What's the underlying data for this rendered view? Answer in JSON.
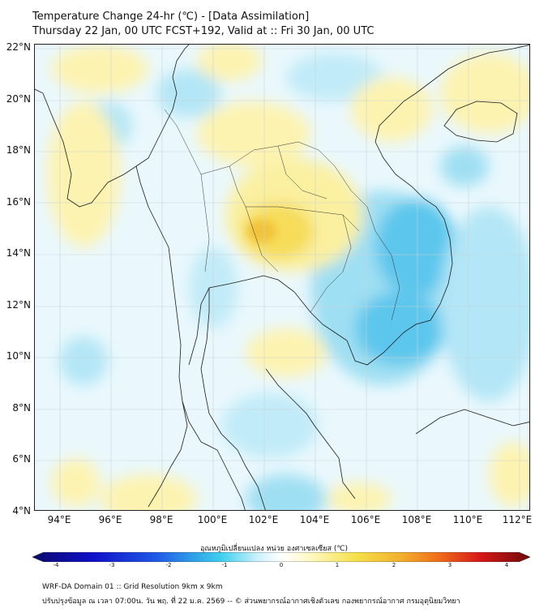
{
  "title": {
    "line1": "Temperature Change 24-hr (℃) - [Data Assimilation]",
    "line2": "Thursday 22 Jan, 00 UTC FCST+192, Valid at :: Fri 30 Jan, 00 UTC"
  },
  "map": {
    "lat_labels": [
      "22°N",
      "20°N",
      "18°N",
      "16°N",
      "14°N",
      "12°N",
      "10°N",
      "8°N",
      "6°N",
      "4°N"
    ],
    "lon_labels": [
      "94°E",
      "96°E",
      "98°E",
      "100°E",
      "102°E",
      "104°E",
      "106°E",
      "108°E",
      "110°E",
      "112°E"
    ],
    "lat_range": [
      4,
      22.2
    ],
    "lon_range": [
      93,
      112.4
    ],
    "field_summary": {
      "warm_areas": [
        "northeast Thailand (Isan) up to ~+1.5",
        "Gulf of Thailand",
        "western Myanmar coast",
        "northern Vietnam / Hainan",
        "Strait of Malacca"
      ],
      "cool_areas": [
        "Cambodia / southern Vietnam down to ~-1.2",
        "South China Sea",
        "Andaman Sea patches",
        "northern Myanmar"
      ]
    }
  },
  "colorbar": {
    "title": "อุณหภูมิเปลี่ยนแปลง หน่วย องศาเซลเซียส (℃)",
    "ticks": [
      "-4",
      "-3",
      "-2",
      "-1",
      "0",
      "1",
      "2",
      "3",
      "4"
    ],
    "min": -4,
    "max": 4,
    "colors": [
      "#0a0a6e",
      "#1010c8",
      "#1e5ae6",
      "#2f9de8",
      "#3fd0ef",
      "#c8f0fb",
      "#ffffff",
      "#fff8c0",
      "#f5e04a",
      "#f2b02e",
      "#ef6a1a",
      "#d61818",
      "#6e0a0a"
    ]
  },
  "footer": {
    "line1": "WRF-DA Domain 01 :: Grid Resolution 9km x 9km",
    "line2": "ปรับปรุงข้อมูล ณ เวลา 07:00น. วัน พฤ. ที่ 22 ม.ค. 2569 -- © ส่วนพยากรณ์อากาศเชิงตัวเลข กองพยากรณ์อากาศ กรมอุตุนิยมวิทยา"
  }
}
